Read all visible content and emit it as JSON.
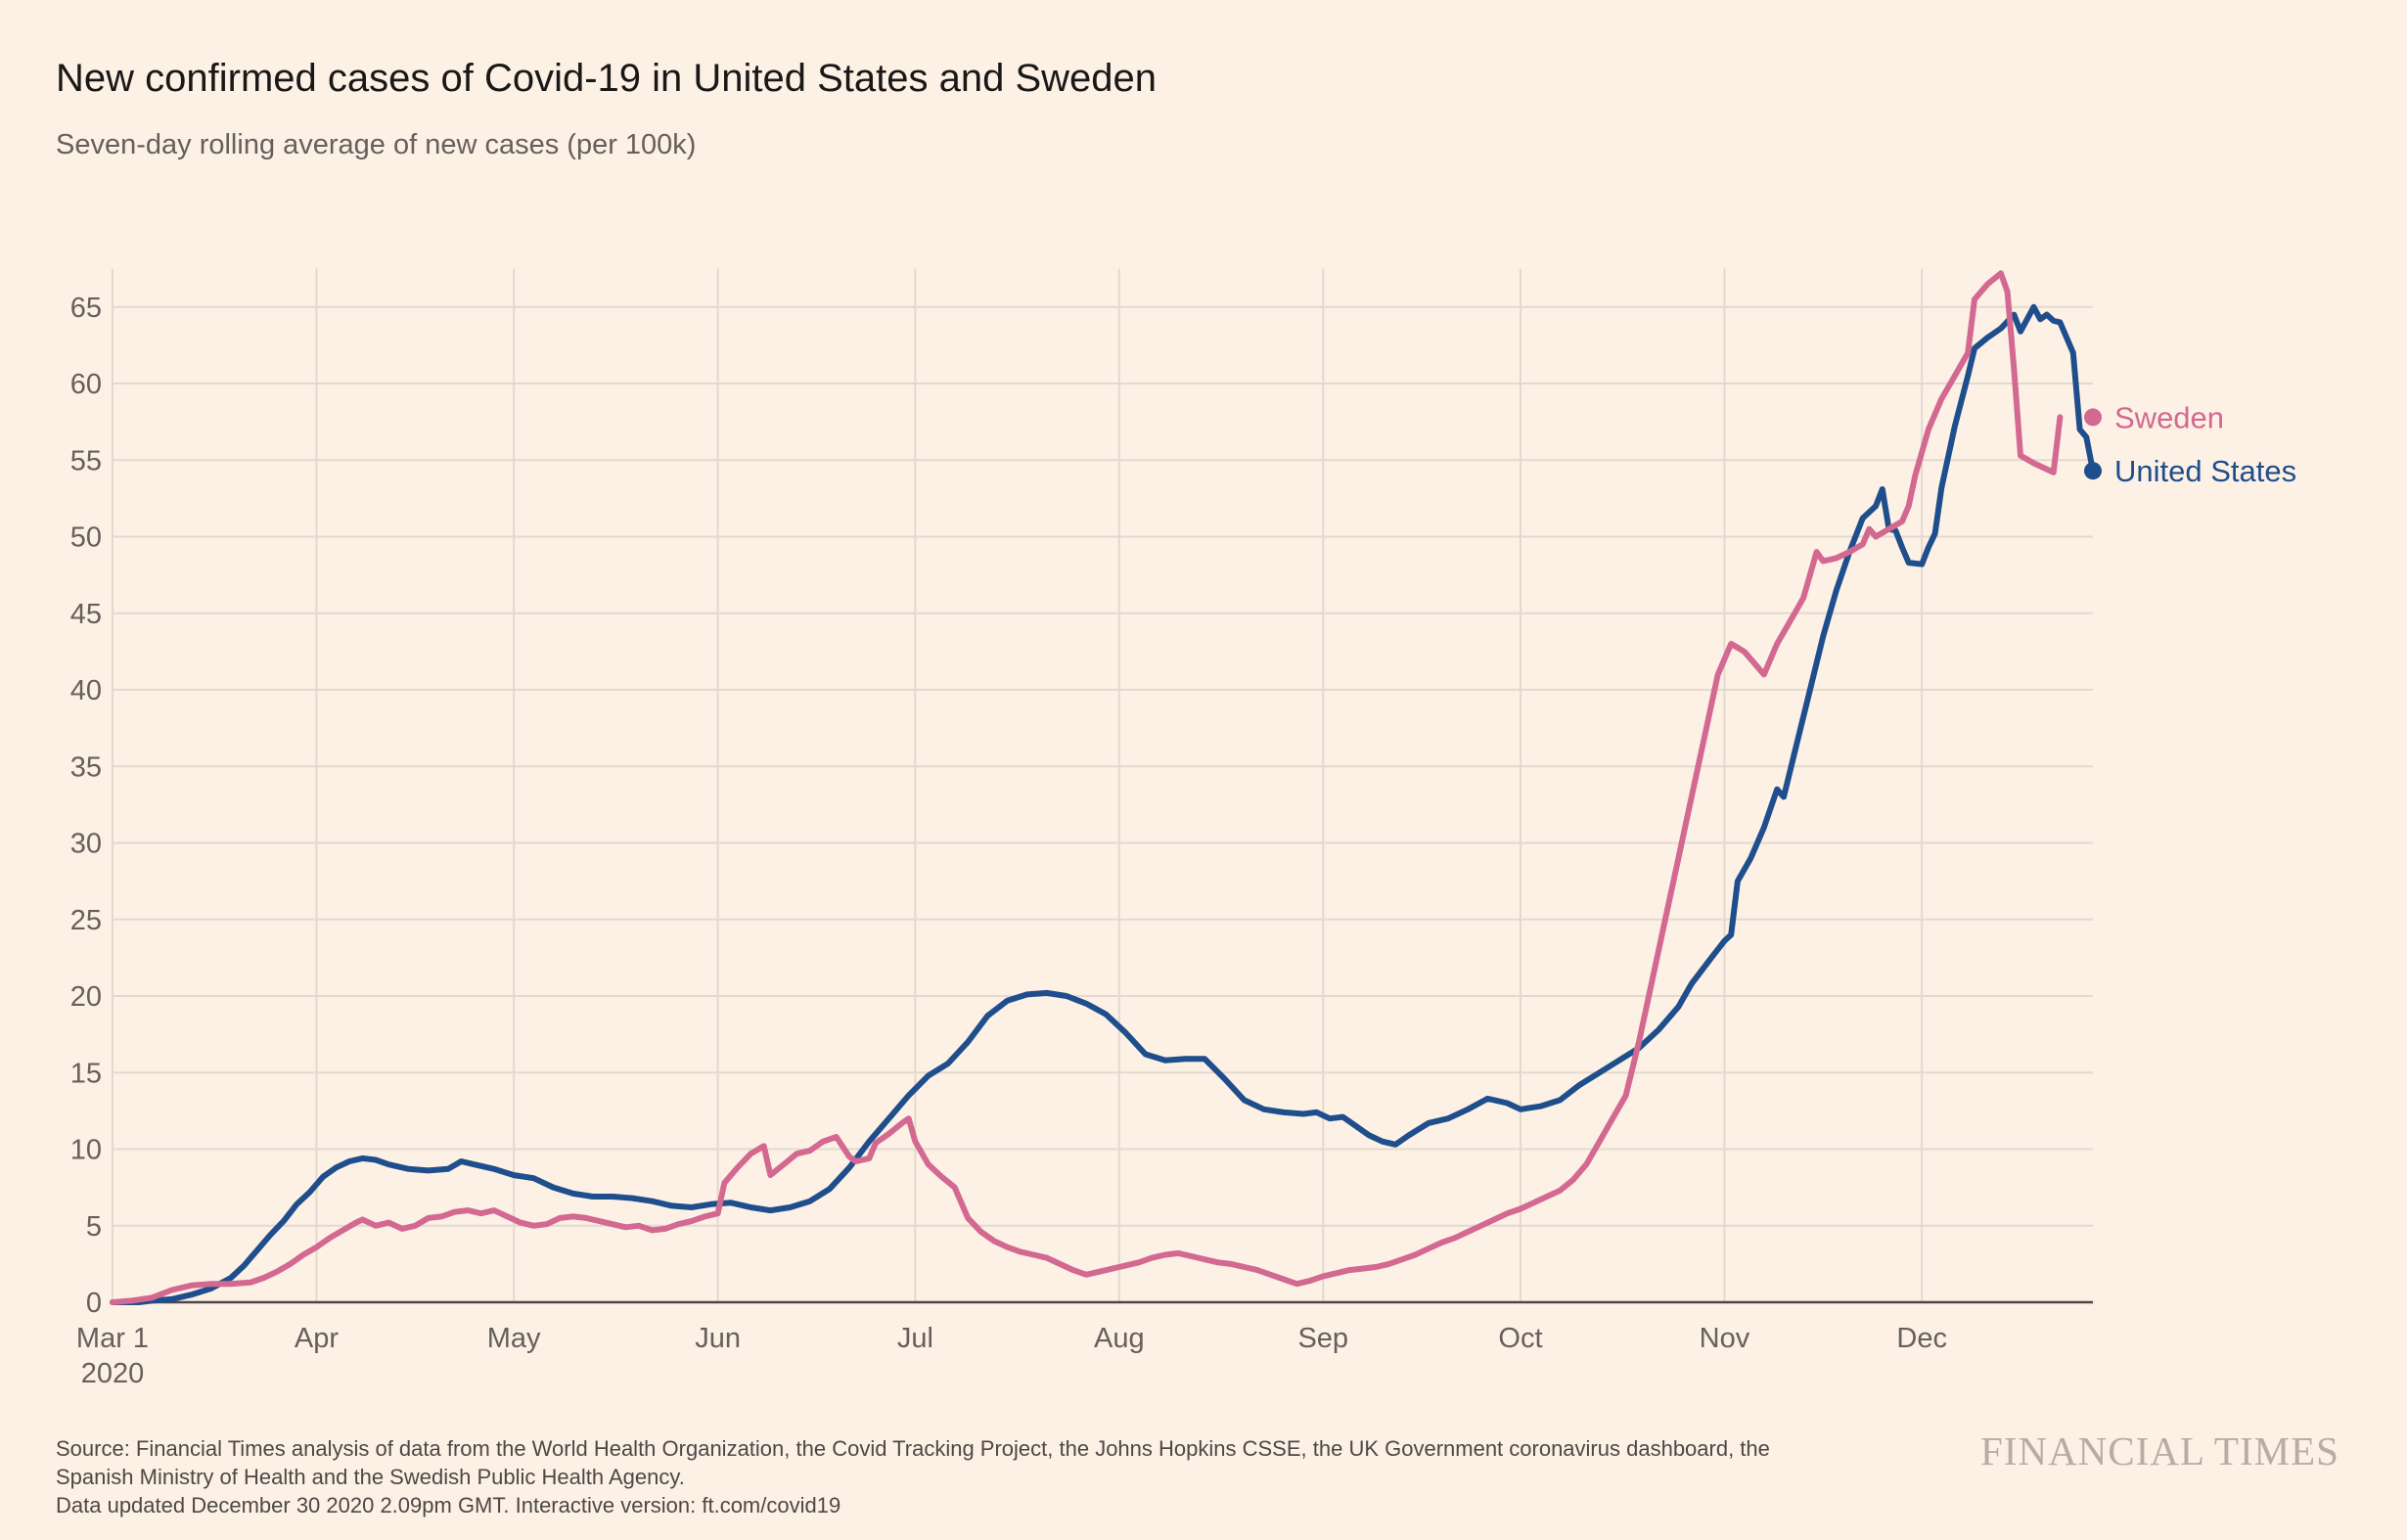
{
  "title": "New confirmed cases of Covid-19 in United States and Sweden",
  "subtitle": "Seven-day rolling average of new cases (per 100k)",
  "source": {
    "line1": "Source: Financial Times analysis of data from the World Health Organization, the Covid Tracking Project, the Johns Hopkins CSSE, the UK Government coronavirus dashboard, the",
    "line2": "Spanish Ministry of Health and the Swedish Public Health Agency.",
    "line3": "Data updated December 30 2020 2.09pm GMT. Interactive version: ft.com/covid19"
  },
  "brand": "FINANCIAL TIMES",
  "colors": {
    "background": "#fdf1e6",
    "grid": "#e3d9cf",
    "axis": "#66605c",
    "united_states": "#1f4e8c",
    "sweden": "#d36890"
  },
  "chart_data": {
    "type": "line",
    "title": "New confirmed cases of Covid-19 in United States and Sweden",
    "xlabel": "",
    "ylabel": "",
    "x_unit": "day index from Mar 1 2020",
    "xlim": [
      0,
      301
    ],
    "ylim": [
      0,
      67.5
    ],
    "grid": true,
    "yticks": [
      0,
      5,
      10,
      15,
      20,
      25,
      30,
      35,
      40,
      45,
      50,
      55,
      60,
      65
    ],
    "xticks": [
      {
        "x": 0,
        "label": "Mar 1",
        "sublabel": "2020"
      },
      {
        "x": 31,
        "label": "Apr"
      },
      {
        "x": 61,
        "label": "May"
      },
      {
        "x": 92,
        "label": "Jun"
      },
      {
        "x": 122,
        "label": "Jul"
      },
      {
        "x": 153,
        "label": "Aug"
      },
      {
        "x": 184,
        "label": "Sep"
      },
      {
        "x": 214,
        "label": "Oct"
      },
      {
        "x": 245,
        "label": "Nov"
      },
      {
        "x": 275,
        "label": "Dec"
      }
    ],
    "series": [
      {
        "name": "United States",
        "label": "United States",
        "color": "#1f4e8c",
        "points": [
          [
            0,
            0
          ],
          [
            4,
            0
          ],
          [
            6,
            0.1
          ],
          [
            9,
            0.2
          ],
          [
            12,
            0.5
          ],
          [
            15,
            0.9
          ],
          [
            18,
            1.6
          ],
          [
            20,
            2.4
          ],
          [
            22,
            3.4
          ],
          [
            24,
            4.4
          ],
          [
            26,
            5.3
          ],
          [
            28,
            6.4
          ],
          [
            30,
            7.2
          ],
          [
            32,
            8.2
          ],
          [
            34,
            8.8
          ],
          [
            36,
            9.2
          ],
          [
            38,
            9.4
          ],
          [
            40,
            9.3
          ],
          [
            42,
            9.0
          ],
          [
            45,
            8.7
          ],
          [
            48,
            8.6
          ],
          [
            51,
            8.7
          ],
          [
            53,
            9.2
          ],
          [
            55,
            9.0
          ],
          [
            58,
            8.7
          ],
          [
            61,
            8.3
          ],
          [
            64,
            8.1
          ],
          [
            67,
            7.5
          ],
          [
            70,
            7.1
          ],
          [
            73,
            6.9
          ],
          [
            76,
            6.9
          ],
          [
            79,
            6.8
          ],
          [
            82,
            6.6
          ],
          [
            85,
            6.3
          ],
          [
            88,
            6.2
          ],
          [
            91,
            6.4
          ],
          [
            94,
            6.5
          ],
          [
            97,
            6.2
          ],
          [
            100,
            6.0
          ],
          [
            103,
            6.2
          ],
          [
            106,
            6.6
          ],
          [
            109,
            7.4
          ],
          [
            112,
            8.8
          ],
          [
            115,
            10.5
          ],
          [
            118,
            12.0
          ],
          [
            121,
            13.5
          ],
          [
            124,
            14.8
          ],
          [
            127,
            15.6
          ],
          [
            130,
            17.0
          ],
          [
            133,
            18.7
          ],
          [
            136,
            19.7
          ],
          [
            139,
            20.1
          ],
          [
            142,
            20.2
          ],
          [
            145,
            20.0
          ],
          [
            148,
            19.5
          ],
          [
            151,
            18.8
          ],
          [
            154,
            17.6
          ],
          [
            157,
            16.2
          ],
          [
            160,
            15.8
          ],
          [
            163,
            15.9
          ],
          [
            166,
            15.9
          ],
          [
            169,
            14.6
          ],
          [
            172,
            13.2
          ],
          [
            175,
            12.6
          ],
          [
            178,
            12.4
          ],
          [
            181,
            12.3
          ],
          [
            183,
            12.4
          ],
          [
            185,
            12.0
          ],
          [
            187,
            12.1
          ],
          [
            189,
            11.5
          ],
          [
            191,
            10.9
          ],
          [
            193,
            10.5
          ],
          [
            195,
            10.3
          ],
          [
            197,
            10.9
          ],
          [
            200,
            11.7
          ],
          [
            203,
            12.0
          ],
          [
            206,
            12.6
          ],
          [
            209,
            13.3
          ],
          [
            212,
            13.0
          ],
          [
            214,
            12.6
          ],
          [
            217,
            12.8
          ],
          [
            220,
            13.2
          ],
          [
            223,
            14.2
          ],
          [
            226,
            15.0
          ],
          [
            229,
            15.8
          ],
          [
            232,
            16.6
          ],
          [
            235,
            17.8
          ],
          [
            238,
            19.3
          ],
          [
            240,
            20.8
          ],
          [
            243,
            22.5
          ],
          [
            245,
            23.6
          ],
          [
            246,
            24.0
          ],
          [
            247,
            27.5
          ],
          [
            249,
            29.0
          ],
          [
            251,
            31.0
          ],
          [
            253,
            33.5
          ],
          [
            254,
            33.0
          ],
          [
            256,
            36.5
          ],
          [
            258,
            40.0
          ],
          [
            260,
            43.5
          ],
          [
            262,
            46.5
          ],
          [
            264,
            49.0
          ],
          [
            266,
            51.2
          ],
          [
            268,
            52.0
          ],
          [
            269,
            53.1
          ],
          [
            270,
            50.5
          ],
          [
            271,
            50.4
          ],
          [
            272,
            49.3
          ],
          [
            273,
            48.3
          ],
          [
            275,
            48.2
          ],
          [
            276,
            49.3
          ],
          [
            277,
            50.2
          ],
          [
            278,
            53.2
          ],
          [
            280,
            57.2
          ],
          [
            282,
            60.5
          ],
          [
            283,
            62.3
          ],
          [
            285,
            63.0
          ],
          [
            287,
            63.6
          ],
          [
            289,
            64.5
          ],
          [
            290,
            63.4
          ],
          [
            292,
            65.0
          ],
          [
            293,
            64.2
          ],
          [
            294,
            64.5
          ],
          [
            295,
            64.1
          ],
          [
            296,
            64.0
          ],
          [
            298,
            62.0
          ],
          [
            299,
            57.0
          ],
          [
            300,
            56.5
          ],
          [
            301,
            54.3
          ]
        ]
      },
      {
        "name": "Sweden",
        "label": "Sweden",
        "color": "#d36890",
        "points": [
          [
            0,
            0
          ],
          [
            3,
            0.1
          ],
          [
            6,
            0.3
          ],
          [
            9,
            0.8
          ],
          [
            12,
            1.1
          ],
          [
            15,
            1.2
          ],
          [
            18,
            1.2
          ],
          [
            21,
            1.3
          ],
          [
            23,
            1.6
          ],
          [
            25,
            2.0
          ],
          [
            27,
            2.5
          ],
          [
            29,
            3.1
          ],
          [
            31,
            3.6
          ],
          [
            33,
            4.2
          ],
          [
            35,
            4.7
          ],
          [
            37,
            5.2
          ],
          [
            38,
            5.4
          ],
          [
            40,
            5.0
          ],
          [
            42,
            5.2
          ],
          [
            44,
            4.8
          ],
          [
            46,
            5.0
          ],
          [
            48,
            5.5
          ],
          [
            50,
            5.6
          ],
          [
            52,
            5.9
          ],
          [
            54,
            6.0
          ],
          [
            56,
            5.8
          ],
          [
            58,
            6.0
          ],
          [
            60,
            5.6
          ],
          [
            62,
            5.2
          ],
          [
            64,
            5.0
          ],
          [
            66,
            5.1
          ],
          [
            68,
            5.5
          ],
          [
            70,
            5.6
          ],
          [
            72,
            5.5
          ],
          [
            74,
            5.3
          ],
          [
            76,
            5.1
          ],
          [
            78,
            4.9
          ],
          [
            80,
            5.0
          ],
          [
            82,
            4.7
          ],
          [
            84,
            4.8
          ],
          [
            86,
            5.1
          ],
          [
            88,
            5.3
          ],
          [
            90,
            5.6
          ],
          [
            92,
            5.8
          ],
          [
            93,
            7.8
          ],
          [
            95,
            8.8
          ],
          [
            97,
            9.7
          ],
          [
            99,
            10.2
          ],
          [
            100,
            8.3
          ],
          [
            102,
            9.0
          ],
          [
            104,
            9.7
          ],
          [
            106,
            9.9
          ],
          [
            108,
            10.5
          ],
          [
            110,
            10.8
          ],
          [
            112,
            9.5
          ],
          [
            113,
            9.2
          ],
          [
            115,
            9.4
          ],
          [
            116,
            10.4
          ],
          [
            118,
            11.0
          ],
          [
            120,
            11.7
          ],
          [
            121,
            12.0
          ],
          [
            122,
            10.5
          ],
          [
            124,
            9.0
          ],
          [
            126,
            8.2
          ],
          [
            128,
            7.5
          ],
          [
            130,
            5.5
          ],
          [
            132,
            4.6
          ],
          [
            134,
            4.0
          ],
          [
            136,
            3.6
          ],
          [
            138,
            3.3
          ],
          [
            140,
            3.1
          ],
          [
            142,
            2.9
          ],
          [
            144,
            2.5
          ],
          [
            146,
            2.1
          ],
          [
            148,
            1.8
          ],
          [
            150,
            2.0
          ],
          [
            152,
            2.2
          ],
          [
            154,
            2.4
          ],
          [
            156,
            2.6
          ],
          [
            158,
            2.9
          ],
          [
            160,
            3.1
          ],
          [
            162,
            3.2
          ],
          [
            164,
            3.0
          ],
          [
            166,
            2.8
          ],
          [
            168,
            2.6
          ],
          [
            170,
            2.5
          ],
          [
            172,
            2.3
          ],
          [
            174,
            2.1
          ],
          [
            176,
            1.8
          ],
          [
            178,
            1.5
          ],
          [
            180,
            1.2
          ],
          [
            182,
            1.4
          ],
          [
            184,
            1.7
          ],
          [
            186,
            1.9
          ],
          [
            188,
            2.1
          ],
          [
            190,
            2.2
          ],
          [
            192,
            2.3
          ],
          [
            194,
            2.5
          ],
          [
            196,
            2.8
          ],
          [
            198,
            3.1
          ],
          [
            200,
            3.5
          ],
          [
            202,
            3.9
          ],
          [
            204,
            4.2
          ],
          [
            206,
            4.6
          ],
          [
            208,
            5.0
          ],
          [
            210,
            5.4
          ],
          [
            212,
            5.8
          ],
          [
            214,
            6.1
          ],
          [
            216,
            6.5
          ],
          [
            218,
            6.9
          ],
          [
            220,
            7.3
          ],
          [
            222,
            8.0
          ],
          [
            224,
            9.0
          ],
          [
            226,
            10.5
          ],
          [
            228,
            12.0
          ],
          [
            230,
            13.5
          ],
          [
            232,
            17.0
          ],
          [
            234,
            21.0
          ],
          [
            236,
            25.0
          ],
          [
            238,
            29.0
          ],
          [
            240,
            33.0
          ],
          [
            242,
            37.0
          ],
          [
            244,
            41.0
          ],
          [
            246,
            43.0
          ],
          [
            248,
            42.5
          ],
          [
            250,
            41.5
          ],
          [
            251,
            41.0
          ],
          [
            253,
            43.0
          ],
          [
            255,
            44.5
          ],
          [
            257,
            46.0
          ],
          [
            259,
            49.0
          ],
          [
            260,
            48.4
          ],
          [
            262,
            48.6
          ],
          [
            264,
            49.0
          ],
          [
            266,
            49.5
          ],
          [
            267,
            50.5
          ],
          [
            268,
            50.0
          ],
          [
            270,
            50.5
          ],
          [
            272,
            51.0
          ],
          [
            273,
            52.0
          ],
          [
            274,
            54.0
          ],
          [
            276,
            57.0
          ],
          [
            278,
            59.0
          ],
          [
            280,
            60.5
          ],
          [
            282,
            62.0
          ],
          [
            283,
            65.5
          ],
          [
            285,
            66.5
          ],
          [
            287,
            67.2
          ],
          [
            288,
            66.0
          ],
          [
            289,
            61.0
          ],
          [
            290,
            55.3
          ],
          [
            292,
            54.8
          ],
          [
            294,
            54.4
          ],
          [
            295,
            54.2
          ],
          [
            296,
            57.8
          ]
        ]
      }
    ]
  }
}
